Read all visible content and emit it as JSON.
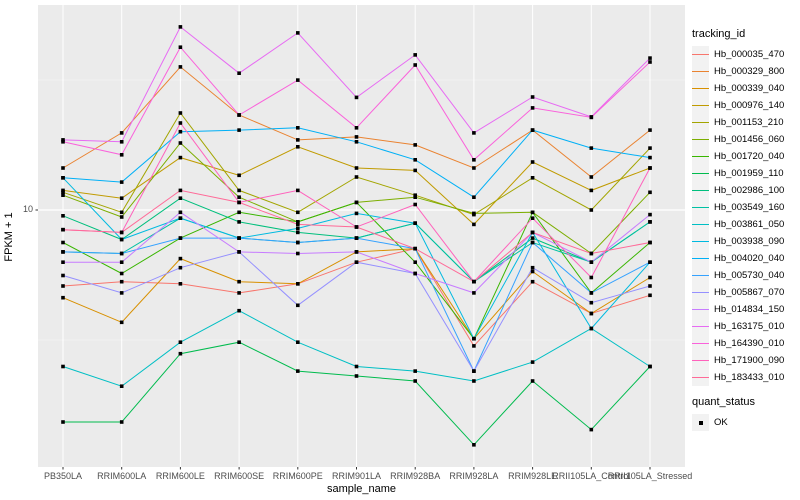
{
  "chart_data": {
    "type": "line",
    "title": "",
    "xlabel": "sample_name",
    "ylabel": "FPKM + 1",
    "y_scale": "log10",
    "y_ticks": [
      10
    ],
    "y_tick_labels": [
      "10"
    ],
    "ylim": [
      1.03,
      61
    ],
    "grid": true,
    "panel_bg": "#EBEBEB",
    "grid_color": "#FFFFFF",
    "marker": "black-square",
    "legend_title": "tracking_id",
    "legend_position": "right",
    "categories": [
      "PB350LA",
      "RRIM600LA",
      "RRIM600LE",
      "RRIM600SE",
      "RRIM600PE",
      "RRIM901LA",
      "RRIM928BA",
      "RRIM928LA",
      "RRIM928LE",
      "RRII105LA_Control",
      "RRII105LA_Stressed"
    ],
    "series": [
      {
        "name": "Hb_000035_470",
        "color": "#F8766D",
        "values": [
          5.1,
          5.3,
          5.2,
          4.8,
          5.2,
          6.3,
          7.1,
          3.0,
          5.3,
          4.0,
          4.7
        ]
      },
      {
        "name": "Hb_000329_800",
        "color": "#EA8331",
        "values": [
          14.5,
          19.8,
          35.5,
          23.2,
          18.6,
          19.1,
          17.8,
          14.5,
          20.3,
          13.4,
          20.3
        ]
      },
      {
        "name": "Hb_000339_040",
        "color": "#D89000",
        "values": [
          4.6,
          3.7,
          6.5,
          5.3,
          5.2,
          6.9,
          7.1,
          3.2,
          5.8,
          4.0,
          5.5
        ]
      },
      {
        "name": "Hb_000976_140",
        "color": "#C09B00",
        "values": [
          11.9,
          11.1,
          15.9,
          13.6,
          17.5,
          14.5,
          14.2,
          8.8,
          15.3,
          11.9,
          14.5
        ]
      },
      {
        "name": "Hb_001153_210",
        "color": "#A3A500",
        "values": [
          11.7,
          9.8,
          23.6,
          11.9,
          9.8,
          13.4,
          11.4,
          9.6,
          13.3,
          10.0,
          17.3
        ]
      },
      {
        "name": "Hb_001456_060",
        "color": "#7CAE00",
        "values": [
          11.4,
          9.4,
          18.1,
          11.2,
          9.0,
          10.7,
          11.2,
          9.7,
          9.8,
          6.8,
          11.7
        ]
      },
      {
        "name": "Hb_001720_040",
        "color": "#39B600",
        "values": [
          7.5,
          5.7,
          7.8,
          9.8,
          9.0,
          10.7,
          6.3,
          3.2,
          9.8,
          4.8,
          7.5
        ]
      },
      {
        "name": "Hb_001959_110",
        "color": "#00BB4E",
        "values": [
          1.53,
          1.53,
          2.8,
          3.1,
          2.4,
          2.3,
          2.2,
          1.25,
          2.2,
          1.43,
          2.5
        ]
      },
      {
        "name": "Hb_002986_100",
        "color": "#00BF7D",
        "values": [
          9.5,
          7.7,
          11.1,
          9.0,
          8.2,
          7.8,
          8.9,
          5.3,
          7.8,
          6.3,
          9.0
        ]
      },
      {
        "name": "Hb_003549_160",
        "color": "#00C1A3",
        "values": [
          6.9,
          6.8,
          9.3,
          7.8,
          7.5,
          7.8,
          8.9,
          5.3,
          7.5,
          6.3,
          9.0
        ]
      },
      {
        "name": "Hb_003861_050",
        "color": "#00BFC4",
        "values": [
          2.5,
          2.1,
          3.1,
          4.1,
          3.1,
          2.5,
          2.4,
          2.2,
          2.6,
          3.5,
          2.5
        ]
      },
      {
        "name": "Hb_003938_090",
        "color": "#00BAE0",
        "values": [
          13.3,
          7.7,
          9.3,
          7.8,
          8.5,
          9.7,
          8.9,
          3.2,
          8.2,
          3.5,
          6.3
        ]
      },
      {
        "name": "Hb_004020_040",
        "color": "#00B0F6",
        "values": [
          13.3,
          12.8,
          20.0,
          20.3,
          20.7,
          18.3,
          15.6,
          11.2,
          20.3,
          17.3,
          15.9
        ]
      },
      {
        "name": "Hb_005730_040",
        "color": "#35A2FF",
        "values": [
          6.9,
          6.8,
          7.8,
          7.8,
          7.5,
          7.8,
          7.1,
          2.4,
          7.5,
          4.8,
          6.3
        ]
      },
      {
        "name": "Hb_005867_070",
        "color": "#9590FF",
        "values": [
          5.6,
          4.8,
          6.0,
          6.9,
          4.3,
          6.3,
          5.7,
          2.4,
          6.0,
          4.4,
          5.1
        ]
      },
      {
        "name": "Hb_014834_150",
        "color": "#C77CFF",
        "values": [
          6.3,
          6.3,
          9.8,
          6.9,
          6.8,
          6.9,
          5.7,
          4.8,
          8.2,
          6.3,
          9.6
        ]
      },
      {
        "name": "Hb_163175_010",
        "color": "#E76BF3",
        "values": [
          18.6,
          18.3,
          50.6,
          33.6,
          48.0,
          27.1,
          39.5,
          19.8,
          27.2,
          22.8,
          38.4
        ]
      },
      {
        "name": "Hb_164390_010",
        "color": "#FA62DB",
        "values": [
          18.3,
          16.3,
          42.3,
          23.2,
          31.6,
          20.7,
          36.1,
          15.6,
          24.7,
          22.7,
          37.1
        ]
      },
      {
        "name": "Hb_171900_090",
        "color": "#FF62BC",
        "values": [
          8.4,
          8.2,
          21.6,
          10.7,
          11.9,
          8.6,
          10.5,
          5.3,
          9.3,
          5.5,
          14.5
        ]
      },
      {
        "name": "Hb_183433_010",
        "color": "#FF6A98",
        "values": [
          8.4,
          8.2,
          11.9,
          10.7,
          8.8,
          8.6,
          7.1,
          5.3,
          8.2,
          6.8,
          7.5
        ]
      }
    ]
  },
  "quant_legend": {
    "title": "quant_status",
    "items": [
      {
        "label": "OK",
        "marker_color": "#000000"
      }
    ]
  }
}
